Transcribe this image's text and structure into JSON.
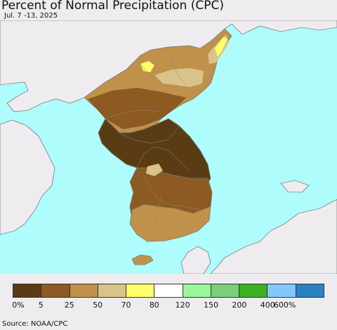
{
  "map": {
    "title": "Percent of Normal Precipitation (CPC)",
    "subtitle": "Jul. 7 -13, 2025",
    "source": "Source: NOAA/CPC",
    "colors": {
      "ocean": "#aefcfc",
      "land_outside": "#eeecee",
      "border": "#7a7a7a"
    }
  },
  "legend": {
    "labels": [
      "0%",
      "5",
      "25",
      "50",
      "70",
      "80",
      "120",
      "150",
      "200",
      "400",
      "600%"
    ],
    "colors": [
      "#5a3c14",
      "#8c5a22",
      "#c0914a",
      "#d8c48a",
      "#ffff6a",
      "#ffffff",
      "#9bf69b",
      "#7ccd7c",
      "#3cb022",
      "#82c8fa",
      "#2a82c2"
    ]
  }
}
